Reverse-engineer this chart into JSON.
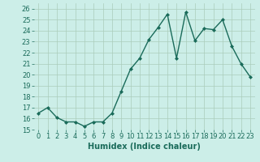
{
  "xlabel": "Humidex (Indice chaleur)",
  "x": [
    0,
    1,
    2,
    3,
    4,
    5,
    6,
    7,
    8,
    9,
    10,
    11,
    12,
    13,
    14,
    15,
    16,
    17,
    18,
    19,
    20,
    21,
    22,
    23
  ],
  "y": [
    16.5,
    17.0,
    16.1,
    15.7,
    15.7,
    15.3,
    15.7,
    15.7,
    16.5,
    18.5,
    20.5,
    21.5,
    23.2,
    24.3,
    25.5,
    21.5,
    25.7,
    23.1,
    24.2,
    24.1,
    25.0,
    22.6,
    21.0,
    19.8
  ],
  "line_color": "#1a6b5a",
  "marker": "D",
  "marker_size": 2,
  "line_width": 1.0,
  "bg_color": "#cceee8",
  "grid_color": "#aaccbb",
  "ylim": [
    15,
    26.5
  ],
  "yticks": [
    15,
    16,
    17,
    18,
    19,
    20,
    21,
    22,
    23,
    24,
    25,
    26
  ],
  "xlim": [
    -0.5,
    23.5
  ],
  "xticks": [
    0,
    1,
    2,
    3,
    4,
    5,
    6,
    7,
    8,
    9,
    10,
    11,
    12,
    13,
    14,
    15,
    16,
    17,
    18,
    19,
    20,
    21,
    22,
    23
  ],
  "xlabel_fontsize": 7,
  "tick_fontsize": 6,
  "tick_color": "#1a6b5a"
}
